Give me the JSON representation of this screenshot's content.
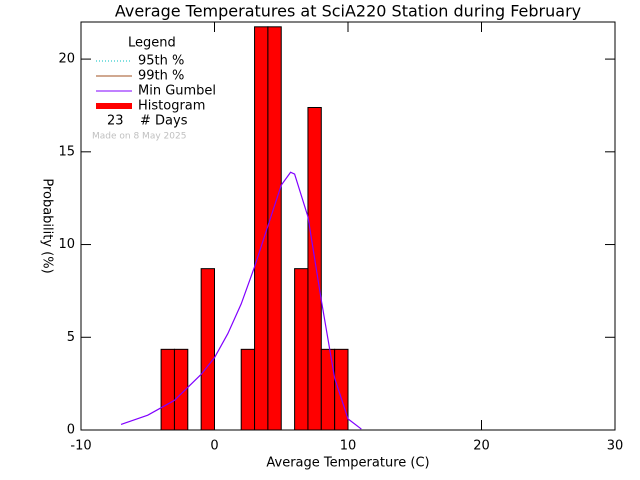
{
  "chart_data": {
    "type": "histogram",
    "title": "Average Temperatures at SciA220 Station during February",
    "xlabel": "Average Temperature (C)",
    "ylabel": "Probability (%)",
    "note": "Made on 8 May 2025",
    "bins": [
      -4,
      -3,
      -2,
      -1,
      0,
      1,
      2,
      3,
      4,
      5,
      6,
      7,
      8,
      9,
      10
    ],
    "values": [
      4.35,
      4.35,
      0,
      8.7,
      0,
      0,
      4.35,
      21.74,
      21.74,
      0,
      8.7,
      17.39,
      4.35,
      4.35
    ],
    "color": "#ff0000",
    "curve": {
      "name": "Min Gumbel",
      "color": "#8000ff",
      "x": [
        -7,
        -5,
        -3,
        -1,
        0,
        1,
        2,
        3,
        4,
        5,
        5.7,
        6,
        7,
        8,
        9,
        10,
        11
      ],
      "values": [
        0.3,
        0.8,
        1.6,
        3.0,
        3.9,
        5.2,
        6.8,
        8.8,
        11.0,
        13.2,
        13.9,
        13.8,
        11.5,
        7.0,
        2.8,
        0.6,
        0.05
      ]
    },
    "xlim": [
      -10,
      30
    ],
    "ylim": [
      0,
      22
    ],
    "xticks": [
      -10,
      0,
      10,
      20,
      30
    ],
    "yticks": [
      0,
      5,
      10,
      15,
      20
    ],
    "legend": {
      "title": "Legend",
      "entries": [
        {
          "name": "95th %",
          "color": "#00c0c0",
          "style": "dotted"
        },
        {
          "name": "99th %",
          "color": "#a05020",
          "style": "solid"
        },
        {
          "name": "Min Gumbel",
          "color": "#8000ff",
          "style": "solid"
        },
        {
          "name": "Histogram",
          "color": "#ff0000",
          "style": "thick"
        }
      ],
      "count": 23,
      "count_label": "# Days"
    }
  }
}
